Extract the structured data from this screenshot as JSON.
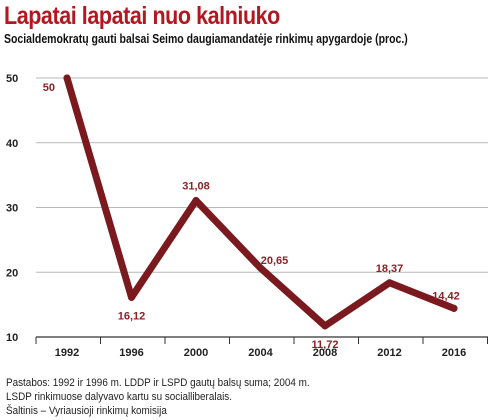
{
  "title": "Lapatai lapatai nuo kalniuko",
  "subtitle": "Socialdemokratų gauti balsai Seimo daugiamandatėje rinkimų apygardoje (proc.)",
  "notes": [
    "Pastabos: 1992 ir 1996 m. LDDP ir LSPD gautų balsų suma; 2004 m.",
    "LSDP rinkimuose dalyvavo kartu su socialliberalais.",
    "Šaltinis – Vyriausioji rinkimų komisija"
  ],
  "colors": {
    "title": "#b3171f",
    "line": "#7a1a1f",
    "label": "#8b2228",
    "grid": "#b9b9b9"
  },
  "chart_data": {
    "type": "line",
    "title": "Lapatai lapatai nuo kalniuko",
    "subtitle": "Socialdemokratų gauti balsai Seimo daugiamandatėje rinkimų apygardoje (proc.)",
    "xlabel": "",
    "ylabel": "",
    "x": [
      "1992",
      "1996",
      "2000",
      "2004",
      "2008",
      "2012",
      "2016"
    ],
    "values": [
      50,
      16.12,
      31.08,
      20.65,
      11.72,
      18.37,
      14.42
    ],
    "labels": [
      "50",
      "16,12",
      "31,08",
      "20,65",
      "11,72",
      "18,37",
      "14,42"
    ],
    "yticks": [
      "10",
      "20",
      "30",
      "40",
      "50"
    ],
    "ylim": [
      10,
      50
    ],
    "grid": true,
    "legend": "none"
  }
}
